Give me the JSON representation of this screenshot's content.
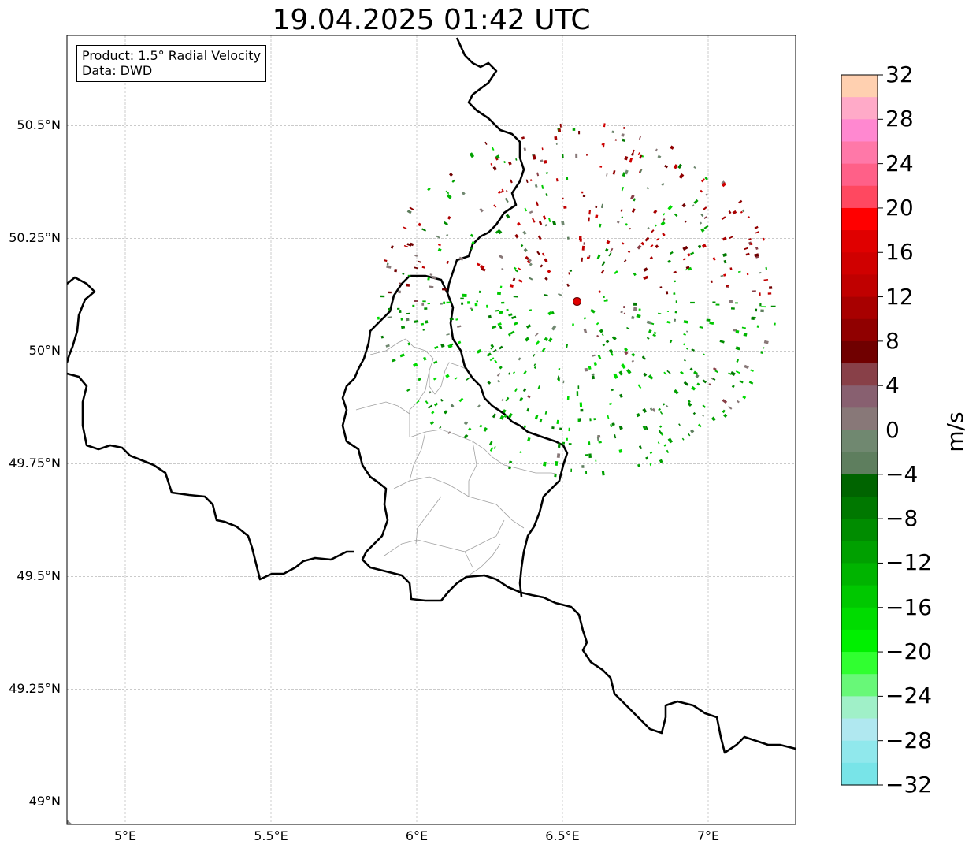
{
  "title": "19.04.2025 01:42 UTC",
  "info_box": {
    "product": "Product: 1.5° Radial Velocity",
    "source": "Data: DWD"
  },
  "map": {
    "lon_range": [
      4.8,
      7.3
    ],
    "lat_range": [
      48.95,
      50.7
    ],
    "lat_ticks": [
      {
        "value": 50.5,
        "label": "50.5°N"
      },
      {
        "value": 50.25,
        "label": "50.25°N"
      },
      {
        "value": 50.0,
        "label": "50°N"
      },
      {
        "value": 49.75,
        "label": "49.75°N"
      },
      {
        "value": 49.5,
        "label": "49.5°N"
      },
      {
        "value": 49.25,
        "label": "49.25°N"
      },
      {
        "value": 49.0,
        "label": "49°N"
      }
    ],
    "lon_ticks": [
      {
        "value": 5.0,
        "label": "5°E"
      },
      {
        "value": 5.5,
        "label": "5.5°E"
      },
      {
        "value": 6.0,
        "label": "6°E"
      },
      {
        "value": 6.5,
        "label": "6.5°E"
      },
      {
        "value": 7.0,
        "label": "7°E"
      }
    ],
    "radar_site": {
      "lon": 6.55,
      "lat": 50.11
    },
    "grid": true,
    "border_color": "#000000",
    "province_color": "#a0a0a0"
  },
  "colorbar": {
    "unit": "m/s",
    "min": -32,
    "max": 32,
    "ticks": [
      {
        "value": 32,
        "label": "32"
      },
      {
        "value": 28,
        "label": "28"
      },
      {
        "value": 24,
        "label": "24"
      },
      {
        "value": 20,
        "label": "20"
      },
      {
        "value": 16,
        "label": "16"
      },
      {
        "value": 12,
        "label": "12"
      },
      {
        "value": 8,
        "label": "8"
      },
      {
        "value": 4,
        "label": "4"
      },
      {
        "value": 0,
        "label": "0"
      },
      {
        "value": -4,
        "label": "−4"
      },
      {
        "value": -8,
        "label": "−8"
      },
      {
        "value": -12,
        "label": "−12"
      },
      {
        "value": -16,
        "label": "−16"
      },
      {
        "value": -20,
        "label": "−20"
      },
      {
        "value": -24,
        "label": "−24"
      },
      {
        "value": -28,
        "label": "−28"
      },
      {
        "value": -32,
        "label": "−32"
      }
    ],
    "colors_top_to_bottom": [
      "#ffd0b0",
      "#ffaac8",
      "#ff88d0",
      "#ff78a8",
      "#ff6088",
      "#ff4860",
      "#ff0000",
      "#e00000",
      "#d00000",
      "#c00000",
      "#a80000",
      "#900000",
      "#700000",
      "#884048",
      "#886070",
      "#887878",
      "#708870",
      "#5e7e5e",
      "#006400",
      "#007800",
      "#008c00",
      "#00a000",
      "#00b400",
      "#00c800",
      "#00dc00",
      "#00f000",
      "#30ff30",
      "#68f878",
      "#a0f0c8",
      "#b0e8f0",
      "#90e8ec",
      "#78e4e8"
    ]
  }
}
